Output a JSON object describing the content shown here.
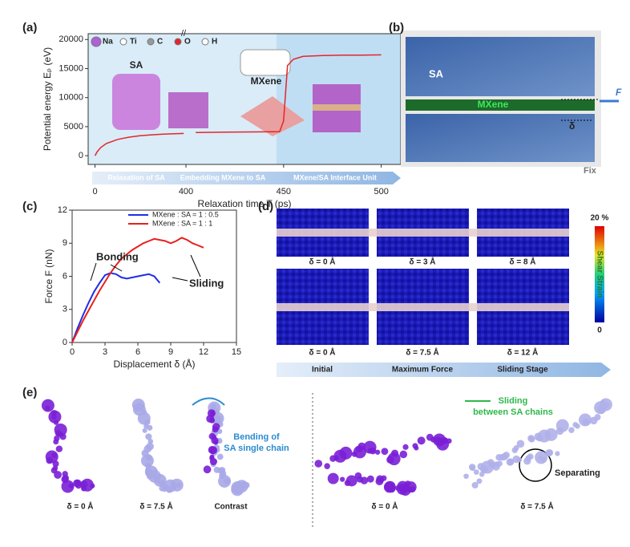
{
  "chart_data": [
    {
      "type": "line",
      "xlabel": "Relaxation time T (ps)",
      "ylabel": "Potential energy Eₚ (eV)",
      "x": [
        0,
        10,
        25,
        50,
        100,
        150,
        200,
        250,
        300,
        350,
        390,
        400,
        405,
        420,
        440,
        448,
        450,
        452,
        455,
        460,
        470,
        480,
        490,
        500
      ],
      "series": [
        {
          "color": "#e3262b",
          "values": [
            0,
            700,
            1400,
            2100,
            2800,
            3200,
            3450,
            3600,
            3700,
            3780,
            3830,
            null,
            4000,
            4050,
            4100,
            4150,
            6000,
            15500,
            16600,
            17100,
            17250,
            17300,
            17300,
            17350
          ]
        }
      ],
      "xlim": [
        -30,
        510
      ],
      "xbreak": 400,
      "xticks": [
        0,
        400,
        450,
        500
      ],
      "ylim": [
        -1500,
        21000
      ],
      "yticks": [
        0,
        5000,
        10000,
        15000,
        20000
      ],
      "legend": [
        "Na",
        "Ti",
        "C",
        "O",
        "H"
      ],
      "legend_colors": [
        "#b05fd6",
        "#ffffff",
        "#999999",
        "#e3262b",
        "#ffffff"
      ],
      "annotations": [
        "SA",
        "MXene"
      ],
      "stages": [
        "Relaxation of SA",
        "Embedding MXene to SA",
        "MXene/SA Interface Unit"
      ]
    },
    {
      "type": "line",
      "xlabel": "Displacement δ (Å)",
      "ylabel": "Force F (nN)",
      "x": [
        0,
        0.5,
        1,
        1.5,
        2,
        2.5,
        3,
        3.5,
        4,
        4.5,
        5,
        5.5,
        6,
        6.5,
        7,
        7.5,
        8,
        8.5,
        9,
        9.5,
        10,
        10.5,
        11,
        11.5,
        12
      ],
      "series": [
        {
          "name": "MXene : SA = 1 : 0.5",
          "color": "#1f2ee6",
          "values": [
            0,
            1.3,
            2.5,
            3.6,
            4.6,
            5.4,
            6.1,
            6.3,
            6.2,
            5.9,
            5.8,
            5.9,
            6.0,
            6.1,
            6.2,
            6.0,
            5.4,
            null,
            null,
            null,
            null,
            null,
            null,
            null,
            null
          ]
        },
        {
          "name": "MXene : SA = 1 : 1",
          "color": "#e8201d",
          "values": [
            0,
            1.0,
            2.0,
            2.9,
            3.8,
            4.7,
            5.5,
            6.3,
            7.0,
            7.6,
            8.0,
            8.4,
            8.7,
            9.0,
            9.2,
            9.4,
            9.3,
            9.2,
            9.0,
            9.2,
            9.5,
            9.3,
            9.0,
            8.8,
            8.6
          ]
        }
      ],
      "xlim": [
        0,
        15
      ],
      "xticks": [
        0,
        3,
        6,
        9,
        12,
        15
      ],
      "ylim": [
        0,
        12
      ],
      "yticks": [
        0,
        3,
        6,
        9,
        12
      ],
      "annotations": [
        "Bonding",
        "Sliding"
      ]
    }
  ],
  "panels": {
    "labels": [
      "(a)",
      "(b)",
      "(c)",
      "(d)",
      "(e)"
    ],
    "b": {
      "texts": [
        "SA",
        "MXene",
        "F",
        "δ",
        "Fix"
      ]
    },
    "d": {
      "row1": [
        "δ = 0 Å",
        "δ = 3 Å",
        "δ = 8 Å"
      ],
      "row2": [
        "δ = 0 Å",
        "δ = 7.5 Å",
        "δ = 12 Å"
      ],
      "colorbar": [
        "20 %",
        "Shear Strain",
        "0"
      ],
      "stages": [
        "Initial",
        "Maximum Force",
        "Sliding Stage"
      ]
    },
    "e": {
      "labels": [
        "δ = 0 Å",
        "δ = 7.5 Å",
        "Contrast",
        "δ = 0 Å",
        "δ = 7.5 Å"
      ],
      "bending": [
        "Bending of",
        "SA single chain"
      ],
      "sliding": [
        "Sliding",
        "between SA chains"
      ],
      "separating": "Separating"
    }
  }
}
